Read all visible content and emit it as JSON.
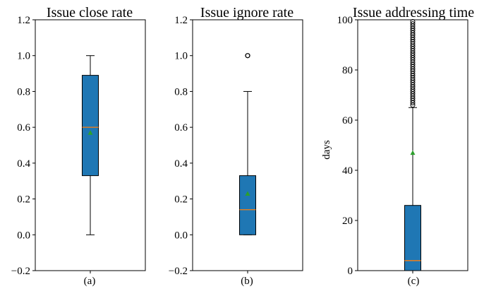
{
  "colors": {
    "box": "#1f77b4",
    "median": "#ff7f0e",
    "mean": "#2ca02c",
    "line": "#000000"
  },
  "chart_data": [
    {
      "type": "box",
      "title": "Issue close rate",
      "xlabel": "(a)",
      "ylabel": "",
      "ylim": [
        -0.2,
        1.2
      ],
      "yticks": [
        -0.2,
        0.0,
        0.2,
        0.4,
        0.6,
        0.8,
        1.0,
        1.2
      ],
      "ytick_labels": [
        "−0.2",
        "0.0",
        "0.2",
        "0.4",
        "0.6",
        "0.8",
        "1.0",
        "1.2"
      ],
      "box": {
        "whisker_low": 0.0,
        "q1": 0.33,
        "median": 0.6,
        "q3": 0.89,
        "whisker_high": 1.0,
        "mean": 0.57
      },
      "outliers": [],
      "outlier_band": null
    },
    {
      "type": "box",
      "title": "Issue ignore rate",
      "xlabel": "(b)",
      "ylabel": "",
      "ylim": [
        -0.2,
        1.2
      ],
      "yticks": [
        -0.2,
        0.0,
        0.2,
        0.4,
        0.6,
        0.8,
        1.0,
        1.2
      ],
      "ytick_labels": [
        "−0.2",
        "0.0",
        "0.2",
        "0.4",
        "0.6",
        "0.8",
        "1.0",
        "1.2"
      ],
      "box": {
        "whisker_low": 0.0,
        "q1": 0.0,
        "median": 0.14,
        "q3": 0.33,
        "whisker_high": 0.8,
        "mean": 0.23
      },
      "outliers": [
        1.0
      ],
      "outlier_band": null
    },
    {
      "type": "box",
      "title": "Issue addressing time",
      "xlabel": "(c)",
      "ylabel": "days",
      "ylim": [
        0,
        100
      ],
      "yticks": [
        0,
        20,
        40,
        60,
        80,
        100
      ],
      "ytick_labels": [
        "0",
        "20",
        "40",
        "60",
        "80",
        "100"
      ],
      "box": {
        "whisker_low": 0,
        "q1": 0,
        "median": 4,
        "q3": 26,
        "whisker_high": 65,
        "mean": 47
      },
      "outliers": [],
      "outlier_band": [
        66,
        100
      ]
    }
  ]
}
